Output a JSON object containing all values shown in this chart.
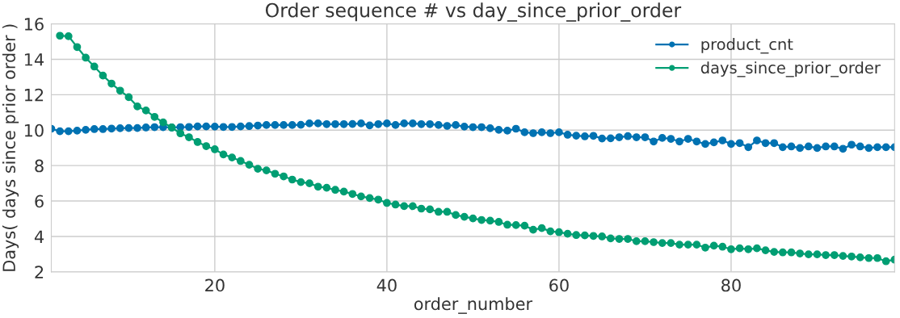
{
  "chart_data": {
    "type": "line",
    "title": "Order sequence # vs day_since_prior_order",
    "xlabel": "order_number",
    "ylabel": "Days( days since prior order )",
    "x": [
      1,
      2,
      3,
      4,
      5,
      6,
      7,
      8,
      9,
      10,
      11,
      12,
      13,
      14,
      15,
      16,
      17,
      18,
      19,
      20,
      21,
      22,
      23,
      24,
      25,
      26,
      27,
      28,
      29,
      30,
      31,
      32,
      33,
      34,
      35,
      36,
      37,
      38,
      39,
      40,
      41,
      42,
      43,
      44,
      45,
      46,
      47,
      48,
      49,
      50,
      51,
      52,
      53,
      54,
      55,
      56,
      57,
      58,
      59,
      60,
      61,
      62,
      63,
      64,
      65,
      66,
      67,
      68,
      69,
      70,
      71,
      72,
      73,
      74,
      75,
      76,
      77,
      78,
      79,
      80,
      81,
      82,
      83,
      84,
      85,
      86,
      87,
      88,
      89,
      90,
      91,
      92,
      93,
      94,
      95,
      96,
      97,
      98,
      99
    ],
    "series": [
      {
        "name": "product_cnt",
        "color": "#0072b2",
        "values": [
          10.08,
          9.94,
          9.94,
          9.97,
          10.02,
          10.06,
          10.06,
          10.09,
          10.11,
          10.12,
          10.12,
          10.15,
          10.17,
          10.17,
          10.15,
          10.17,
          10.18,
          10.21,
          10.21,
          10.2,
          10.18,
          10.18,
          10.21,
          10.23,
          10.26,
          10.29,
          10.29,
          10.29,
          10.29,
          10.3,
          10.38,
          10.38,
          10.34,
          10.34,
          10.34,
          10.35,
          10.38,
          10.27,
          10.34,
          10.38,
          10.29,
          10.38,
          10.38,
          10.34,
          10.34,
          10.29,
          10.24,
          10.29,
          10.2,
          10.17,
          10.17,
          10.11,
          10.02,
          9.97,
          10.08,
          9.88,
          9.83,
          9.88,
          9.83,
          9.88,
          9.74,
          9.69,
          9.65,
          9.68,
          9.53,
          9.54,
          9.6,
          9.66,
          9.6,
          9.6,
          9.36,
          9.56,
          9.51,
          9.36,
          9.51,
          9.36,
          9.22,
          9.31,
          9.42,
          9.22,
          9.27,
          9.04,
          9.42,
          9.27,
          9.27,
          9.04,
          9.08,
          8.99,
          9.08,
          8.99,
          9.08,
          9.08,
          8.95,
          9.18,
          9.08,
          8.99,
          9.04,
          9.04,
          9.04
        ]
      },
      {
        "name": "days_since_prior_order",
        "color": "#009e73",
        "values": [
          null,
          15.33,
          15.3,
          14.69,
          14.09,
          13.59,
          13.08,
          12.63,
          12.23,
          11.86,
          11.34,
          11.11,
          10.75,
          10.44,
          10.15,
          9.82,
          9.6,
          9.33,
          9.1,
          8.92,
          8.63,
          8.46,
          8.26,
          8.05,
          7.82,
          7.73,
          7.54,
          7.39,
          7.21,
          7.07,
          7.0,
          6.81,
          6.75,
          6.63,
          6.53,
          6.4,
          6.26,
          6.17,
          6.08,
          5.89,
          5.8,
          5.71,
          5.71,
          5.57,
          5.53,
          5.39,
          5.39,
          5.21,
          5.11,
          5.02,
          4.93,
          4.89,
          4.82,
          4.66,
          4.64,
          4.61,
          4.38,
          4.47,
          4.29,
          4.24,
          4.15,
          4.08,
          4.06,
          4.03,
          4.0,
          3.89,
          3.86,
          3.86,
          3.73,
          3.73,
          3.68,
          3.63,
          3.63,
          3.54,
          3.54,
          3.54,
          3.37,
          3.48,
          3.42,
          3.28,
          3.33,
          3.28,
          3.33,
          3.22,
          3.13,
          3.1,
          3.1,
          3.04,
          2.99,
          2.99,
          2.95,
          2.95,
          2.9,
          2.87,
          2.82,
          2.78,
          2.78,
          2.6,
          2.69
        ]
      }
    ],
    "xlim": [
      1,
      99
    ],
    "xticks": [
      20,
      40,
      60,
      80
    ],
    "ylim": [
      2,
      16
    ],
    "yticks": [
      2,
      4,
      6,
      8,
      10,
      12,
      14,
      16
    ],
    "grid": true,
    "legend": "top right",
    "marker": "circle",
    "line_style": "solid"
  }
}
